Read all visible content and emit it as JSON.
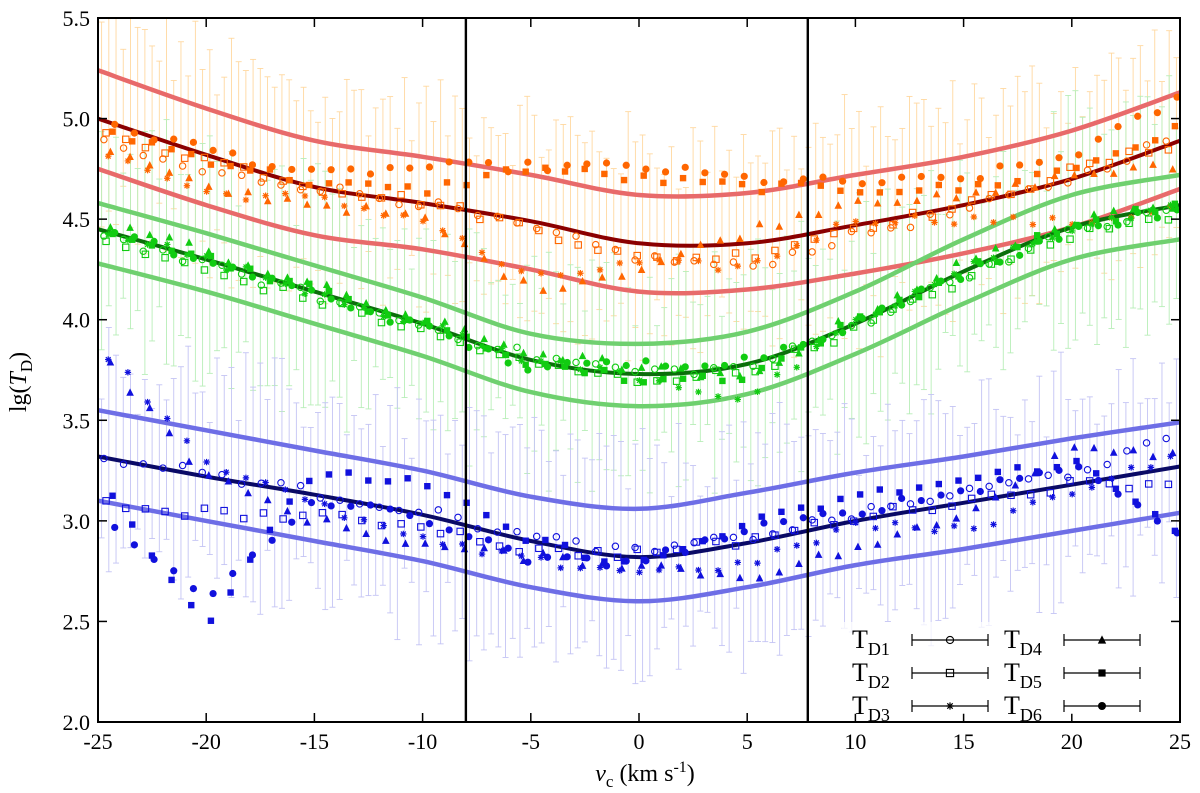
{
  "chart_data": {
    "type": "scatter",
    "ylabel_parts": {
      "pre": "lg(",
      "var": "T",
      "sub": "D",
      "post": ")"
    },
    "xlabel_parts": {
      "var": "v",
      "sub": "c",
      "unit_pre": " (km s",
      "unit_sup": "-1",
      "unit_post": ")"
    },
    "xlim": [
      -25,
      25
    ],
    "ylim": [
      2.0,
      5.5
    ],
    "xticks": [
      -25,
      -20,
      -15,
      -10,
      -5,
      0,
      5,
      10,
      15,
      20,
      25
    ],
    "xtick_labels": [
      "-25",
      "-20",
      "-15",
      "-10",
      "-5",
      "0",
      "5",
      "10",
      "15",
      "20",
      "25"
    ],
    "yticks": [
      2.0,
      2.5,
      3.0,
      3.5,
      4.0,
      4.5,
      5.0,
      5.5
    ],
    "ytick_labels": [
      "2.0",
      "2.5",
      "3.0",
      "3.5",
      "4.0",
      "4.5",
      "5.0",
      "5.5"
    ],
    "vlines": [
      -8,
      7.8
    ],
    "legend": [
      {
        "base": "T",
        "sub": "D1",
        "marker": "open-circle"
      },
      {
        "base": "T",
        "sub": "D2",
        "marker": "open-square"
      },
      {
        "base": "T",
        "sub": "D3",
        "marker": "asterisk"
      },
      {
        "base": "T",
        "sub": "D4",
        "marker": "triangle"
      },
      {
        "base": "T",
        "sub": "D5",
        "marker": "square"
      },
      {
        "base": "T",
        "sub": "D6",
        "marker": "circle"
      }
    ],
    "groups": [
      {
        "name": "orange",
        "point_color": "#ff6600",
        "err_color": "#ffd8a0",
        "center_color": "#8b0000",
        "band_color": "#e86a6a",
        "x": [
          -25,
          -20,
          -15,
          -10,
          -5,
          0,
          5,
          10,
          15,
          20,
          25
        ],
        "center": [
          5.0,
          4.82,
          4.66,
          4.58,
          4.49,
          4.38,
          4.38,
          4.47,
          4.57,
          4.7,
          4.89
        ],
        "upper": [
          5.24,
          5.05,
          4.89,
          4.81,
          4.72,
          4.62,
          4.63,
          4.72,
          4.81,
          4.94,
          5.13
        ],
        "lower": [
          4.75,
          4.57,
          4.42,
          4.35,
          4.25,
          4.14,
          4.15,
          4.23,
          4.33,
          4.46,
          4.65
        ],
        "series": [
          {
            "marker": "open-circle",
            "values": [
              4.88,
              4.73,
              4.66,
              4.58,
              4.45,
              4.31,
              4.26,
              4.42,
              4.54,
              4.7,
              4.92
            ]
          },
          {
            "marker": "open-square",
            "values": [
              4.92,
              4.8,
              4.66,
              4.59,
              4.46,
              4.3,
              4.32,
              4.46,
              4.56,
              4.74,
              4.88
            ]
          },
          {
            "marker": "asterisk",
            "values": [
              4.84,
              4.63,
              4.6,
              4.5,
              4.2,
              4.28,
              4.26,
              4.5,
              4.5,
              4.48,
              4.56
            ]
          },
          {
            "marker": "triangle",
            "values": [
              4.86,
              4.65,
              4.58,
              4.5,
              4.15,
              4.25,
              4.44,
              4.6,
              4.6,
              4.72,
              4.76
            ]
          },
          {
            "marker": "square",
            "values": [
              4.95,
              4.8,
              4.68,
              4.64,
              4.76,
              4.7,
              4.66,
              4.65,
              4.65,
              4.75,
              4.95
            ]
          },
          {
            "marker": "circle",
            "values": [
              4.98,
              4.85,
              4.72,
              4.76,
              4.76,
              4.76,
              4.7,
              4.68,
              4.7,
              4.82,
              5.1
            ]
          }
        ]
      },
      {
        "name": "green",
        "point_color": "#11cc11",
        "err_color": "#b8eeb8",
        "center_color": "#0b6e0b",
        "band_color": "#6fd06f",
        "x": [
          -25,
          -20,
          -15,
          -10,
          -5,
          0,
          5,
          10,
          15,
          20,
          25
        ],
        "center": [
          4.45,
          4.3,
          4.14,
          3.98,
          3.8,
          3.73,
          3.78,
          3.98,
          4.24,
          4.46,
          4.57
        ],
        "upper": [
          4.58,
          4.43,
          4.27,
          4.11,
          3.93,
          3.88,
          3.94,
          4.14,
          4.4,
          4.62,
          4.72
        ],
        "lower": [
          4.28,
          4.14,
          3.98,
          3.82,
          3.64,
          3.57,
          3.63,
          3.83,
          4.08,
          4.3,
          4.4
        ],
        "series": [
          {
            "marker": "open-circle",
            "values": [
              4.43,
              4.27,
              4.12,
              3.97,
              3.82,
              3.74,
              3.76,
              3.97,
              4.22,
              4.44,
              4.55
            ]
          },
          {
            "marker": "open-square",
            "values": [
              4.4,
              4.24,
              4.1,
              3.94,
              3.78,
              3.7,
              3.74,
              3.95,
              4.2,
              4.42,
              4.52
            ]
          },
          {
            "marker": "asterisk",
            "values": [
              4.46,
              4.3,
              4.14,
              3.98,
              3.8,
              3.72,
              3.6,
              3.98,
              4.25,
              4.46,
              4.56
            ]
          },
          {
            "marker": "triangle",
            "values": [
              4.5,
              4.34,
              4.17,
              4.0,
              3.84,
              3.76,
              3.7,
              4.02,
              4.28,
              4.48,
              4.58
            ]
          },
          {
            "marker": "square",
            "values": [
              4.47,
              4.31,
              4.15,
              3.98,
              3.79,
              3.7,
              3.72,
              3.99,
              4.24,
              4.47,
              4.57
            ]
          },
          {
            "marker": "circle",
            "values": [
              4.45,
              4.29,
              4.13,
              3.96,
              3.76,
              3.78,
              3.8,
              3.98,
              4.23,
              4.45,
              4.55
            ]
          }
        ]
      },
      {
        "name": "blue",
        "point_color": "#1111dd",
        "err_color": "#c4c4f4",
        "center_color": "#0a0a66",
        "band_color": "#6e6ee6",
        "x": [
          -25,
          -20,
          -15,
          -10,
          -5,
          0,
          5,
          10,
          15,
          20,
          25
        ],
        "center": [
          3.32,
          3.22,
          3.13,
          3.03,
          2.9,
          2.82,
          2.89,
          3.0,
          3.09,
          3.18,
          3.27
        ],
        "upper": [
          3.55,
          3.45,
          3.35,
          3.25,
          3.12,
          3.06,
          3.14,
          3.24,
          3.32,
          3.41,
          3.49
        ],
        "lower": [
          3.1,
          3.0,
          2.9,
          2.8,
          2.67,
          2.6,
          2.67,
          2.78,
          2.86,
          2.95,
          3.04
        ],
        "series": [
          {
            "marker": "open-circle",
            "values": [
              3.31,
              3.24,
              3.14,
              3.05,
              2.92,
              2.84,
              2.92,
              3.03,
              3.14,
              3.24,
              3.42
            ]
          },
          {
            "marker": "open-square",
            "values": [
              3.08,
              3.04,
              3.02,
              2.98,
              2.85,
              2.84,
              2.9,
              3.02,
              3.1,
              3.18,
              3.19
            ]
          },
          {
            "marker": "asterisk",
            "values": [
              3.88,
              3.3,
              3.08,
              2.9,
              2.8,
              2.75,
              2.78,
              2.98,
              2.95,
              3.15,
              3.34
            ]
          },
          {
            "marker": "triangle",
            "values": [
              3.84,
              3.22,
              3.0,
              2.88,
              2.82,
              2.78,
              2.72,
              2.86,
              3.02,
              3.38,
              3.33
            ]
          },
          {
            "marker": "square",
            "values": [
              3.22,
              2.48,
              3.25,
              3.18,
              2.9,
              2.78,
              2.98,
              3.12,
              3.2,
              3.3,
              2.95
            ]
          },
          {
            "marker": "circle",
            "values": [
              3.05,
              2.6,
              3.1,
              3.02,
              2.8,
              2.8,
              2.95,
              3.05,
              3.15,
              3.28,
              2.95
            ]
          }
        ]
      }
    ]
  }
}
